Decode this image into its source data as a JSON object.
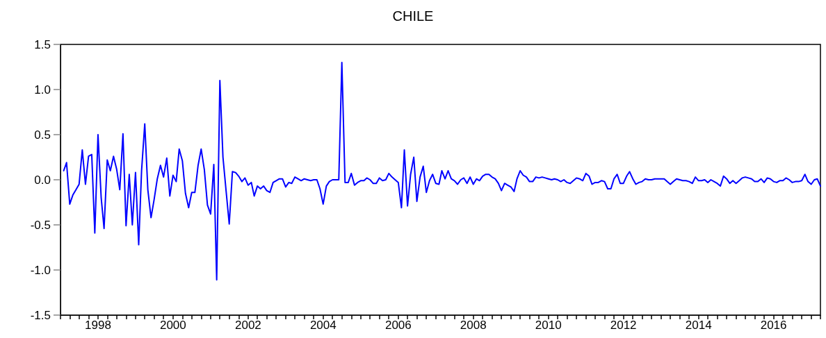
{
  "chart_data": {
    "type": "line",
    "title": "CHILE",
    "color": "#0000ff",
    "line_style": "solid",
    "xlim": [
      "1997-01",
      "2017-04"
    ],
    "ylim": [
      -1.5,
      1.5
    ],
    "yticks": [
      {
        "value": -1.5,
        "label": "-1.5"
      },
      {
        "value": -1,
        "label": "-1.0"
      },
      {
        "value": -0.5,
        "label": "-0.5"
      },
      {
        "value": 0,
        "label": "0.0"
      },
      {
        "value": 0.5,
        "label": "0.5"
      },
      {
        "value": 1,
        "label": "1.0"
      },
      {
        "value": 1.5,
        "label": "1.5"
      }
    ],
    "xticks": [
      {
        "value": "1997-01",
        "label": null
      },
      {
        "value": "1997-04",
        "label": null
      },
      {
        "value": "1997-07",
        "label": null
      },
      {
        "value": "1997-10",
        "label": null
      },
      {
        "value": "1998-01",
        "label": "1998"
      },
      {
        "value": "1998-04",
        "label": null
      },
      {
        "value": "1998-07",
        "label": null
      },
      {
        "value": "1998-10",
        "label": null
      },
      {
        "value": "1999-01",
        "label": null
      },
      {
        "value": "1999-04",
        "label": null
      },
      {
        "value": "1999-07",
        "label": null
      },
      {
        "value": "1999-10",
        "label": null
      },
      {
        "value": "2000-01",
        "label": "2000"
      },
      {
        "value": "2000-04",
        "label": null
      },
      {
        "value": "2000-07",
        "label": null
      },
      {
        "value": "2000-10",
        "label": null
      },
      {
        "value": "2001-01",
        "label": null
      },
      {
        "value": "2001-04",
        "label": null
      },
      {
        "value": "2001-07",
        "label": null
      },
      {
        "value": "2001-10",
        "label": null
      },
      {
        "value": "2002-01",
        "label": "2002"
      },
      {
        "value": "2002-04",
        "label": null
      },
      {
        "value": "2002-07",
        "label": null
      },
      {
        "value": "2002-10",
        "label": null
      },
      {
        "value": "2003-01",
        "label": null
      },
      {
        "value": "2003-04",
        "label": null
      },
      {
        "value": "2003-07",
        "label": null
      },
      {
        "value": "2003-10",
        "label": null
      },
      {
        "value": "2004-01",
        "label": "2004"
      },
      {
        "value": "2004-04",
        "label": null
      },
      {
        "value": "2004-07",
        "label": null
      },
      {
        "value": "2004-10",
        "label": null
      },
      {
        "value": "2005-01",
        "label": null
      },
      {
        "value": "2005-04",
        "label": null
      },
      {
        "value": "2005-07",
        "label": null
      },
      {
        "value": "2005-10",
        "label": null
      },
      {
        "value": "2006-01",
        "label": "2006"
      },
      {
        "value": "2006-04",
        "label": null
      },
      {
        "value": "2006-07",
        "label": null
      },
      {
        "value": "2006-10",
        "label": null
      },
      {
        "value": "2007-01",
        "label": null
      },
      {
        "value": "2007-04",
        "label": null
      },
      {
        "value": "2007-07",
        "label": null
      },
      {
        "value": "2007-10",
        "label": null
      },
      {
        "value": "2008-01",
        "label": "2008"
      },
      {
        "value": "2008-04",
        "label": null
      },
      {
        "value": "2008-07",
        "label": null
      },
      {
        "value": "2008-10",
        "label": null
      },
      {
        "value": "2009-01",
        "label": null
      },
      {
        "value": "2009-04",
        "label": null
      },
      {
        "value": "2009-07",
        "label": null
      },
      {
        "value": "2009-10",
        "label": null
      },
      {
        "value": "2010-01",
        "label": "2010"
      },
      {
        "value": "2010-04",
        "label": null
      },
      {
        "value": "2010-07",
        "label": null
      },
      {
        "value": "2010-10",
        "label": null
      },
      {
        "value": "2011-01",
        "label": null
      },
      {
        "value": "2011-04",
        "label": null
      },
      {
        "value": "2011-07",
        "label": null
      },
      {
        "value": "2011-10",
        "label": null
      },
      {
        "value": "2012-01",
        "label": "2012"
      },
      {
        "value": "2012-04",
        "label": null
      },
      {
        "value": "2012-07",
        "label": null
      },
      {
        "value": "2012-10",
        "label": null
      },
      {
        "value": "2013-01",
        "label": null
      },
      {
        "value": "2013-04",
        "label": null
      },
      {
        "value": "2013-07",
        "label": null
      },
      {
        "value": "2013-10",
        "label": null
      },
      {
        "value": "2014-01",
        "label": "2014"
      },
      {
        "value": "2014-04",
        "label": null
      },
      {
        "value": "2014-07",
        "label": null
      },
      {
        "value": "2014-10",
        "label": null
      },
      {
        "value": "2015-01",
        "label": null
      },
      {
        "value": "2015-04",
        "label": null
      },
      {
        "value": "2015-07",
        "label": null
      },
      {
        "value": "2015-10",
        "label": null
      },
      {
        "value": "2016-01",
        "label": "2016"
      },
      {
        "value": "2016-04",
        "label": null
      },
      {
        "value": "2016-07",
        "label": null
      },
      {
        "value": "2016-10",
        "label": null
      },
      {
        "value": "2017-01",
        "label": null
      },
      {
        "value": "2017-04",
        "label": null
      }
    ],
    "x": [
      "1997-02",
      "1997-03",
      "1997-04",
      "1997-05",
      "1997-06",
      "1997-07",
      "1997-08",
      "1997-09",
      "1997-10",
      "1997-11",
      "1997-12",
      "1998-01",
      "1998-02",
      "1998-03",
      "1998-04",
      "1998-05",
      "1998-06",
      "1998-07",
      "1998-08",
      "1998-09",
      "1998-10",
      "1998-11",
      "1998-12",
      "1999-01",
      "1999-02",
      "1999-03",
      "1999-04",
      "1999-05",
      "1999-06",
      "1999-07",
      "1999-08",
      "1999-09",
      "1999-10",
      "1999-11",
      "1999-12",
      "2000-01",
      "2000-02",
      "2000-03",
      "2000-04",
      "2000-05",
      "2000-06",
      "2000-07",
      "2000-08",
      "2000-09",
      "2000-10",
      "2000-11",
      "2000-12",
      "2001-01",
      "2001-02",
      "2001-03",
      "2001-04",
      "2001-05",
      "2001-06",
      "2001-07",
      "2001-08",
      "2001-09",
      "2001-10",
      "2001-11",
      "2001-12",
      "2002-01",
      "2002-02",
      "2002-03",
      "2002-04",
      "2002-05",
      "2002-06",
      "2002-07",
      "2002-08",
      "2002-09",
      "2002-10",
      "2002-11",
      "2002-12",
      "2003-01",
      "2003-02",
      "2003-03",
      "2003-04",
      "2003-05",
      "2003-06",
      "2003-07",
      "2003-08",
      "2003-09",
      "2003-10",
      "2003-11",
      "2003-12",
      "2004-01",
      "2004-02",
      "2004-03",
      "2004-04",
      "2004-05",
      "2004-06",
      "2004-07",
      "2004-08",
      "2004-09",
      "2004-10",
      "2004-11",
      "2004-12",
      "2005-01",
      "2005-02",
      "2005-03",
      "2005-04",
      "2005-05",
      "2005-06",
      "2005-07",
      "2005-08",
      "2005-09",
      "2005-10",
      "2005-11",
      "2005-12",
      "2006-01",
      "2006-02",
      "2006-03",
      "2006-04",
      "2006-05",
      "2006-06",
      "2006-07",
      "2006-08",
      "2006-09",
      "2006-10",
      "2006-11",
      "2006-12",
      "2007-01",
      "2007-02",
      "2007-03",
      "2007-04",
      "2007-05",
      "2007-06",
      "2007-07",
      "2007-08",
      "2007-09",
      "2007-10",
      "2007-11",
      "2007-12",
      "2008-01",
      "2008-02",
      "2008-03",
      "2008-04",
      "2008-05",
      "2008-06",
      "2008-07",
      "2008-08",
      "2008-09",
      "2008-10",
      "2008-11",
      "2008-12",
      "2009-01",
      "2009-02",
      "2009-03",
      "2009-04",
      "2009-05",
      "2009-06",
      "2009-07",
      "2009-08",
      "2009-09",
      "2009-10",
      "2009-11",
      "2009-12",
      "2010-01",
      "2010-02",
      "2010-03",
      "2010-04",
      "2010-05",
      "2010-06",
      "2010-07",
      "2010-08",
      "2010-09",
      "2010-10",
      "2010-11",
      "2010-12",
      "2011-01",
      "2011-02",
      "2011-03",
      "2011-04",
      "2011-05",
      "2011-06",
      "2011-07",
      "2011-08",
      "2011-09",
      "2011-10",
      "2011-11",
      "2011-12",
      "2012-01",
      "2012-02",
      "2012-03",
      "2012-04",
      "2012-05",
      "2012-06",
      "2012-07",
      "2012-08",
      "2012-09",
      "2012-10",
      "2012-11",
      "2012-12",
      "2013-01",
      "2013-02",
      "2013-03",
      "2013-04",
      "2013-05",
      "2013-06",
      "2013-07",
      "2013-08",
      "2013-09",
      "2013-10",
      "2013-11",
      "2013-12",
      "2014-01",
      "2014-02",
      "2014-03",
      "2014-04",
      "2014-05",
      "2014-06",
      "2014-07",
      "2014-08",
      "2014-09",
      "2014-10",
      "2014-11",
      "2014-12",
      "2015-01",
      "2015-02",
      "2015-03",
      "2015-04",
      "2015-05",
      "2015-06",
      "2015-07",
      "2015-08",
      "2015-09",
      "2015-10",
      "2015-11",
      "2015-12",
      "2016-01",
      "2016-02",
      "2016-03",
      "2016-04",
      "2016-05",
      "2016-06",
      "2016-07",
      "2016-08",
      "2016-09",
      "2016-10",
      "2016-11",
      "2016-12",
      "2017-01",
      "2017-02",
      "2017-03",
      "2017-04"
    ],
    "values": [
      0.1,
      0.19,
      -0.27,
      -0.17,
      -0.11,
      -0.05,
      0.33,
      -0.05,
      0.26,
      0.28,
      -0.59,
      0.5,
      -0.2,
      -0.54,
      0.22,
      0.1,
      0.26,
      0.12,
      -0.11,
      0.51,
      -0.51,
      0.06,
      -0.5,
      0.08,
      -0.72,
      0.1,
      0.62,
      -0.11,
      -0.42,
      -0.22,
      0.01,
      0.16,
      0.03,
      0.24,
      -0.18,
      0.05,
      -0.02,
      0.34,
      0.21,
      -0.15,
      -0.31,
      -0.14,
      -0.14,
      0.16,
      0.34,
      0.11,
      -0.28,
      -0.38,
      0.17,
      -1.11,
      1.1,
      0.25,
      -0.13,
      -0.49,
      0.09,
      0.08,
      0.04,
      -0.02,
      0.02,
      -0.06,
      -0.03,
      -0.18,
      -0.07,
      -0.1,
      -0.07,
      -0.12,
      -0.14,
      -0.03,
      -0.01,
      0.01,
      0.01,
      -0.08,
      -0.03,
      -0.04,
      0.03,
      0.01,
      -0.01,
      0.01,
      0.0,
      -0.01,
      0.0,
      0.0,
      -0.1,
      -0.27,
      -0.07,
      -0.02,
      0.0,
      0.0,
      0.0,
      1.3,
      -0.03,
      -0.03,
      0.07,
      -0.06,
      -0.03,
      -0.01,
      -0.01,
      0.02,
      0.0,
      -0.04,
      -0.04,
      0.02,
      -0.01,
      0.0,
      0.07,
      0.03,
      0.0,
      -0.03,
      -0.31,
      0.33,
      -0.29,
      0.06,
      0.25,
      -0.24,
      0.03,
      0.15,
      -0.14,
      -0.01,
      0.06,
      -0.04,
      -0.05,
      0.1,
      0.01,
      0.1,
      0.01,
      -0.01,
      -0.05,
      0.0,
      0.02,
      -0.04,
      0.03,
      -0.05,
      0.01,
      -0.01,
      0.04,
      0.06,
      0.06,
      0.03,
      0.01,
      -0.04,
      -0.12,
      -0.04,
      -0.06,
      -0.08,
      -0.13,
      0.01,
      0.1,
      0.05,
      0.03,
      -0.02,
      -0.02,
      0.03,
      0.02,
      0.03,
      0.02,
      0.01,
      0.0,
      0.01,
      0.0,
      -0.02,
      0.0,
      -0.03,
      -0.04,
      -0.01,
      0.02,
      0.01,
      -0.01,
      0.07,
      0.04,
      -0.05,
      -0.03,
      -0.03,
      -0.01,
      -0.02,
      -0.1,
      -0.1,
      0.01,
      0.06,
      -0.04,
      -0.04,
      0.04,
      0.09,
      0.01,
      -0.05,
      -0.03,
      -0.02,
      0.01,
      0.0,
      0.0,
      0.01,
      0.01,
      0.01,
      0.01,
      -0.02,
      -0.05,
      -0.02,
      0.01,
      0.0,
      -0.01,
      -0.01,
      -0.02,
      -0.04,
      0.03,
      -0.01,
      -0.01,
      0.0,
      -0.03,
      0.0,
      -0.02,
      -0.04,
      -0.07,
      0.04,
      0.01,
      -0.04,
      -0.01,
      -0.04,
      -0.01,
      0.02,
      0.03,
      0.02,
      0.01,
      -0.02,
      -0.02,
      0.01,
      -0.03,
      0.02,
      0.01,
      -0.02,
      -0.03,
      -0.01,
      -0.01,
      0.02,
      0.0,
      -0.03,
      -0.02,
      -0.02,
      -0.01,
      0.06,
      -0.02,
      -0.05,
      0.0,
      0.01,
      -0.07
    ]
  }
}
